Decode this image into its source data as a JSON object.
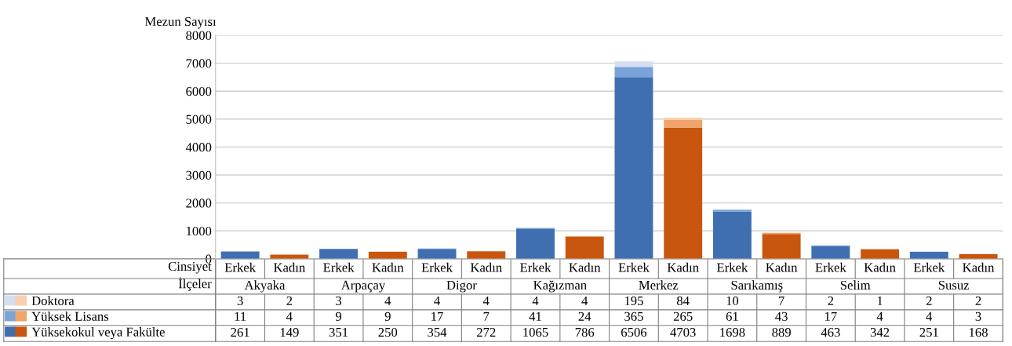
{
  "chart_data": {
    "type": "bar",
    "stacked": true,
    "ylabel": "Mezun Sayısı",
    "categories": [
      "Erkek",
      "Kadın",
      "Erkek",
      "Kadın",
      "Erkek",
      "Kadın",
      "Erkek",
      "Kadın",
      "Erkek",
      "Kadın",
      "Erkek",
      "Kadın",
      "Erkek",
      "Kadın",
      "Erkek",
      "Kadın"
    ],
    "annotations": [
      "Cinsiyet",
      "İlçeler",
      "Akyaka",
      "Arpaçay",
      "Digor",
      "Kağızman",
      "Merkez",
      "Sarıkamış",
      "Selim",
      "Susuz"
    ],
    "series": [
      {
        "name": "Yüksekokul veya Fakülte",
        "colors": [
          "#3f6fb0",
          "#c9560e",
          "#3f6fb0",
          "#c9560e",
          "#3f6fb0",
          "#c9560e",
          "#3f6fb0",
          "#c9560e",
          "#3f6fb0",
          "#c9560e",
          "#3f6fb0",
          "#c9560e",
          "#3f6fb0",
          "#c9560e",
          "#3f6fb0",
          "#c9560e"
        ],
        "values": [
          261,
          149,
          351,
          250,
          354,
          272,
          1065,
          786,
          6506,
          4703,
          1698,
          889,
          463,
          342,
          251,
          168
        ]
      },
      {
        "name": "Yüksek Lisans",
        "colors": [
          "#79a3d9",
          "#f0a46a",
          "#79a3d9",
          "#f0a46a",
          "#79a3d9",
          "#f0a46a",
          "#79a3d9",
          "#f0a46a",
          "#79a3d9",
          "#f0a46a",
          "#79a3d9",
          "#f0a46a",
          "#79a3d9",
          "#f0a46a",
          "#79a3d9",
          "#f0a46a"
        ],
        "values": [
          11,
          4,
          9,
          9,
          17,
          7,
          41,
          24,
          365,
          265,
          61,
          43,
          17,
          4,
          4,
          3
        ]
      },
      {
        "name": "Doktora",
        "colors": [
          "#d3dff0",
          "#f8cfae",
          "#d3dff0",
          "#f8cfae",
          "#d3dff0",
          "#f8cfae",
          "#d3dff0",
          "#f8cfae",
          "#d3dff0",
          "#f8cfae",
          "#d3dff0",
          "#f8cfae",
          "#d3dff0",
          "#f8cfae",
          "#d3dff0",
          "#f8cfae"
        ],
        "values": [
          3,
          2,
          3,
          4,
          4,
          4,
          4,
          4,
          195,
          84,
          10,
          7,
          2,
          1,
          2,
          2
        ]
      }
    ],
    "ylim": [
      0,
      8000
    ],
    "yticks": [
      0,
      1000,
      2000,
      3000,
      4000,
      5000,
      6000,
      7000,
      8000
    ],
    "grid": "y",
    "legend": "bottom left",
    "data_labels": true
  }
}
